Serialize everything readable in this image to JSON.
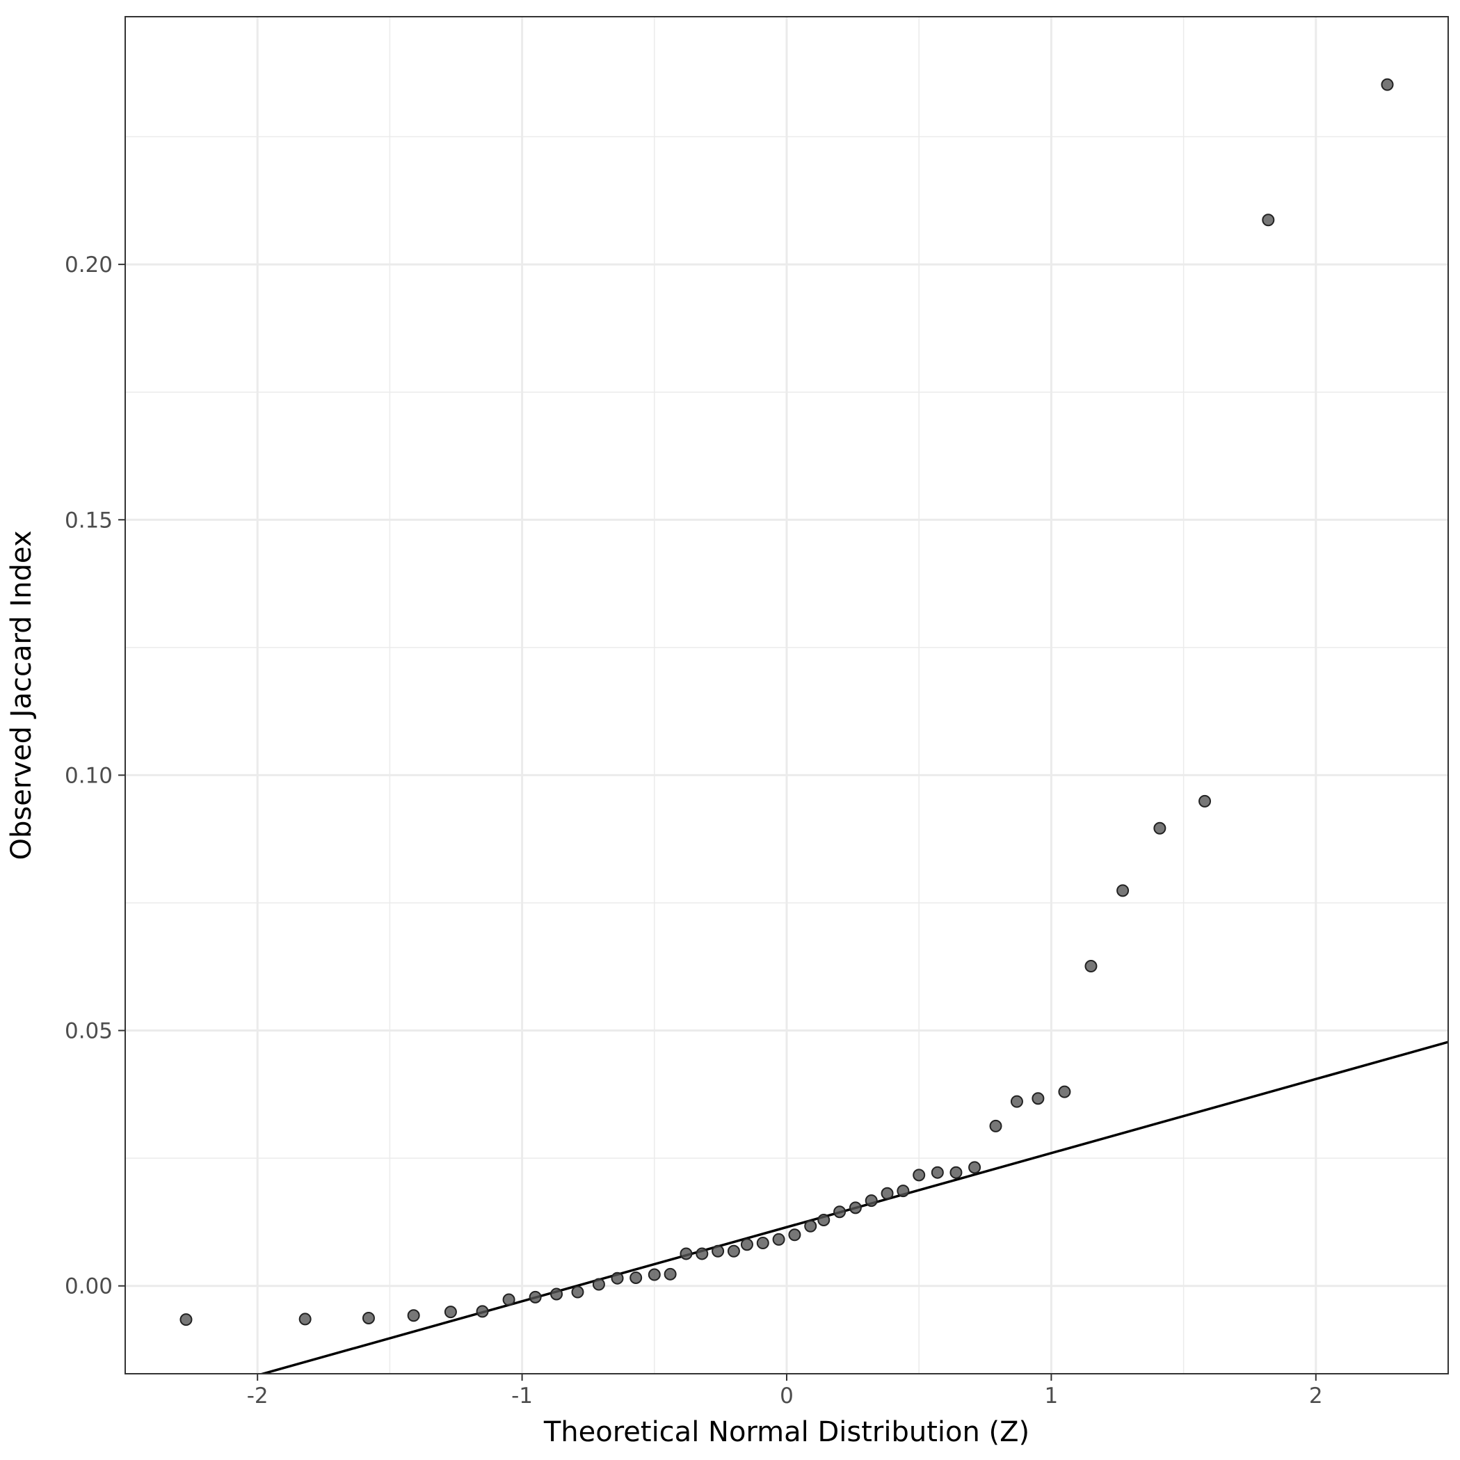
{
  "chart_data": {
    "type": "scatter",
    "title": "",
    "xlabel": "Theoretical Normal Distribution (Z)",
    "ylabel": "Observed Jaccard Index",
    "xlim": [
      -2.5,
      2.5
    ],
    "ylim": [
      -0.0172,
      0.2485
    ],
    "x_major_ticks": [
      -2,
      -1,
      0,
      1,
      2
    ],
    "x_tick_labels": [
      "-2",
      "-1",
      "0",
      "1",
      "2"
    ],
    "x_minor_ticks": [
      -1.5,
      -0.5,
      0.5,
      1.5
    ],
    "y_major_ticks": [
      0.0,
      0.05,
      0.1,
      0.15,
      0.2
    ],
    "y_tick_labels": [
      "0.00",
      "0.05",
      "0.10",
      "0.15",
      "0.20"
    ],
    "y_minor_ticks": [
      0.025,
      0.075,
      0.125,
      0.175,
      0.225
    ],
    "grid": true,
    "point_color": "#555555",
    "line_color": "#000000",
    "reference_line": {
      "intercept": 0.0115,
      "slope": 0.0145
    },
    "points": [
      {
        "x": -2.27,
        "y": -0.0066
      },
      {
        "x": -1.82,
        "y": -0.0065
      },
      {
        "x": -1.58,
        "y": -0.0063
      },
      {
        "x": -1.41,
        "y": -0.0058
      },
      {
        "x": -1.27,
        "y": -0.0051
      },
      {
        "x": -1.15,
        "y": -0.005
      },
      {
        "x": -1.05,
        "y": -0.0027
      },
      {
        "x": -0.95,
        "y": -0.0022
      },
      {
        "x": -0.87,
        "y": -0.0016
      },
      {
        "x": -0.79,
        "y": -0.0012
      },
      {
        "x": -0.71,
        "y": 0.0003
      },
      {
        "x": -0.64,
        "y": 0.0015
      },
      {
        "x": -0.57,
        "y": 0.0016
      },
      {
        "x": -0.5,
        "y": 0.0022
      },
      {
        "x": -0.44,
        "y": 0.0023
      },
      {
        "x": -0.38,
        "y": 0.0063
      },
      {
        "x": -0.32,
        "y": 0.0063
      },
      {
        "x": -0.26,
        "y": 0.0068
      },
      {
        "x": -0.2,
        "y": 0.0068
      },
      {
        "x": -0.15,
        "y": 0.0081
      },
      {
        "x": -0.09,
        "y": 0.0084
      },
      {
        "x": -0.03,
        "y": 0.0091
      },
      {
        "x": 0.03,
        "y": 0.01
      },
      {
        "x": 0.09,
        "y": 0.0117
      },
      {
        "x": 0.14,
        "y": 0.0129
      },
      {
        "x": 0.2,
        "y": 0.0145
      },
      {
        "x": 0.26,
        "y": 0.0153
      },
      {
        "x": 0.32,
        "y": 0.0167
      },
      {
        "x": 0.38,
        "y": 0.0181
      },
      {
        "x": 0.44,
        "y": 0.0186
      },
      {
        "x": 0.5,
        "y": 0.0217
      },
      {
        "x": 0.57,
        "y": 0.0222
      },
      {
        "x": 0.64,
        "y": 0.0222
      },
      {
        "x": 0.71,
        "y": 0.0232
      },
      {
        "x": 0.79,
        "y": 0.0313
      },
      {
        "x": 0.87,
        "y": 0.0361
      },
      {
        "x": 0.95,
        "y": 0.0367
      },
      {
        "x": 1.05,
        "y": 0.038
      },
      {
        "x": 1.15,
        "y": 0.0626
      },
      {
        "x": 1.27,
        "y": 0.0774
      },
      {
        "x": 1.41,
        "y": 0.0896
      },
      {
        "x": 1.58,
        "y": 0.0949
      },
      {
        "x": 1.82,
        "y": 0.2087
      },
      {
        "x": 2.27,
        "y": 0.2352
      }
    ]
  }
}
